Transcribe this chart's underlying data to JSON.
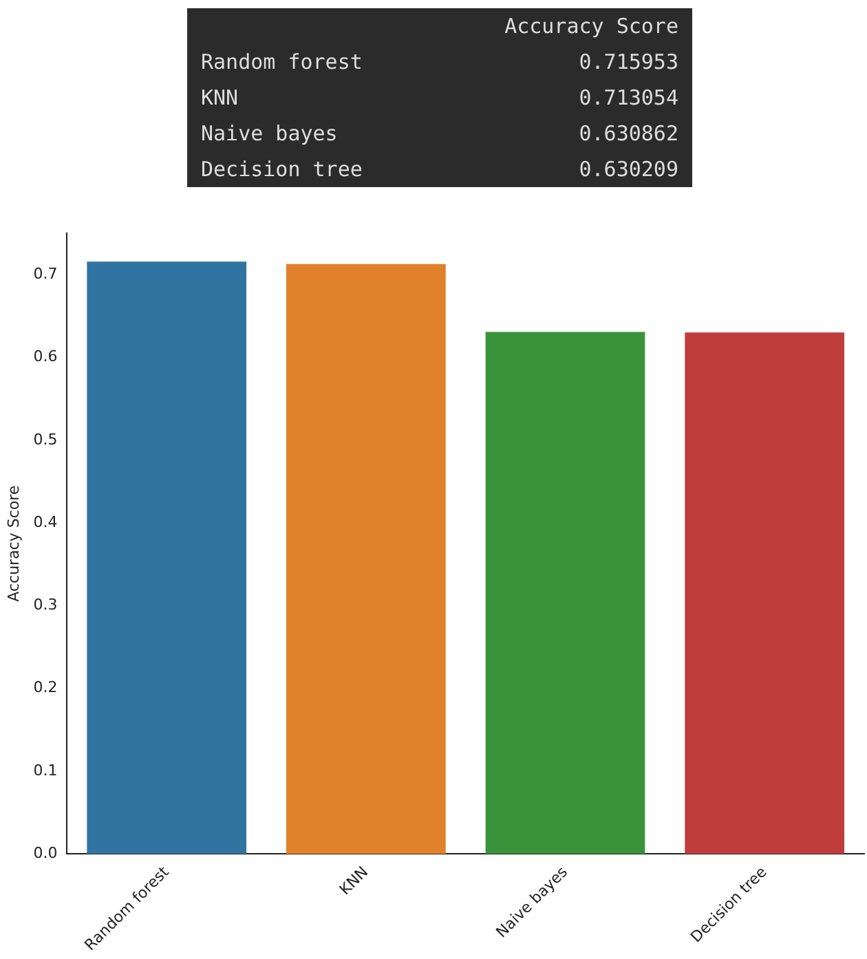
{
  "chart_data": {
    "type": "bar",
    "ylabel": "Accuracy Score",
    "categories": [
      "Random forest",
      "KNN",
      "Naive bayes",
      "Decision tree"
    ],
    "values": [
      0.715953,
      0.713054,
      0.630862,
      0.630209
    ],
    "colors": [
      "#3274a1",
      "#e1812c",
      "#3a923a",
      "#c03d3e"
    ],
    "ylim": [
      0,
      0.75
    ],
    "yticks": [
      {
        "value": 0,
        "label": "0.0"
      },
      0.1,
      0.2,
      0.3,
      0.4,
      0.5,
      0.6,
      0.7
    ],
    "annotations": [
      "Accuracy Score",
      "Random forest",
      "0.715953",
      "KNN",
      "0.713054",
      "Naive bayes",
      "0.630862",
      "Decision tree",
      "0.630209"
    ],
    "grid": false,
    "legend": false
  }
}
